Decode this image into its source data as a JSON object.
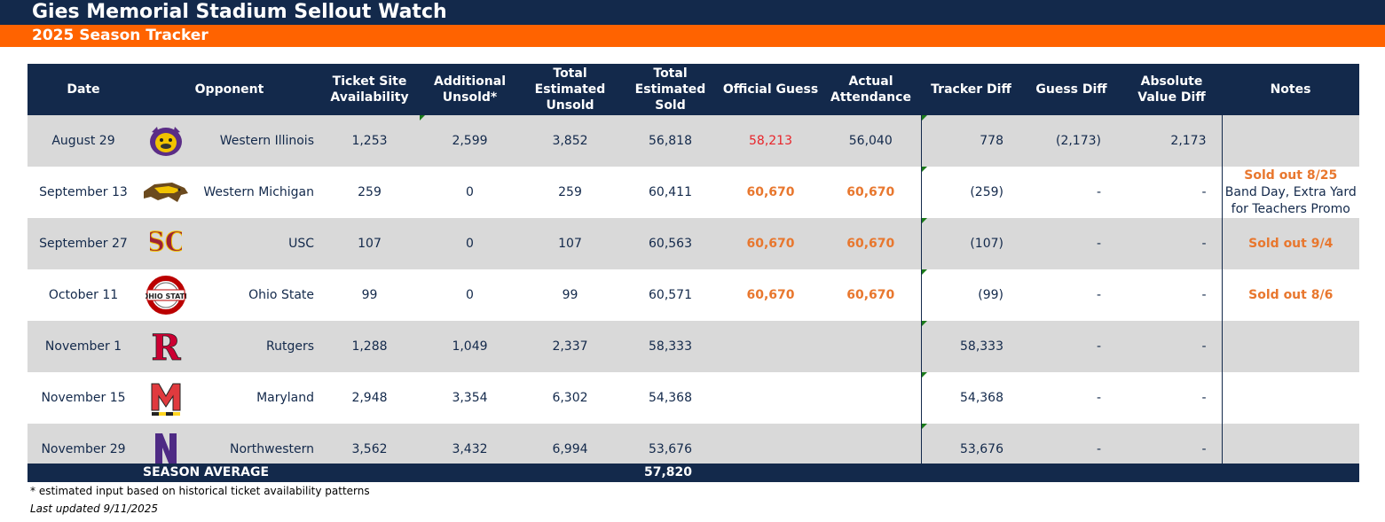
{
  "header": {
    "title": "Gies Memorial Stadium Sellout Watch",
    "subtitle": "2025 Season Tracker"
  },
  "colors": {
    "navy": "#13294b",
    "orange": "#ff6300",
    "row_gray": "#d9d9d9",
    "highlight_orange": "#e8772e",
    "highlight_red": "#e8242a"
  },
  "columns": {
    "date": "Date",
    "opponent": "Opponent",
    "ticket_site_1": "Ticket Site",
    "ticket_site_2": "Availability",
    "additional_1": "Additional",
    "additional_2": "Unsold*",
    "total_unsold_1": "Total",
    "total_unsold_2": "Estimated",
    "total_unsold_3": "Unsold",
    "total_sold_1": "Total",
    "total_sold_2": "Estimated",
    "total_sold_3": "Sold",
    "official_guess": "Official Guess",
    "actual_1": "Actual",
    "actual_2": "Attendance",
    "tracker_diff": "Tracker Diff",
    "guess_diff": "Guess Diff",
    "abs_diff_1": "Absolute",
    "abs_diff_2": "Value Diff",
    "notes": "Notes"
  },
  "rows": [
    {
      "date": "August 29",
      "logo": "western-illinois-logo",
      "opponent": "Western Illinois",
      "ticket_site": "1,253",
      "additional": "2,599",
      "total_unsold": "3,852",
      "total_sold": "56,818",
      "official_guess": "58,213",
      "actual": "56,040",
      "tracker_diff": "778",
      "guess_diff": "(2,173)",
      "abs_diff": "2,173",
      "note_1": "",
      "note_2": ""
    },
    {
      "date": "September 13",
      "logo": "western-michigan-logo",
      "opponent": "Western Michigan",
      "ticket_site": "259",
      "additional": "0",
      "total_unsold": "259",
      "total_sold": "60,411",
      "official_guess": "60,670",
      "actual": "60,670",
      "tracker_diff": "(259)",
      "guess_diff": "-",
      "abs_diff": "-",
      "note_1": "Sold out 8/25",
      "note_2": "Band Day, Extra Yard for Teachers Promo"
    },
    {
      "date": "September 27",
      "logo": "usc-logo",
      "opponent": "USC",
      "ticket_site": "107",
      "additional": "0",
      "total_unsold": "107",
      "total_sold": "60,563",
      "official_guess": "60,670",
      "actual": "60,670",
      "tracker_diff": "(107)",
      "guess_diff": "-",
      "abs_diff": "-",
      "note_1": "Sold out 9/4",
      "note_2": ""
    },
    {
      "date": "October 11",
      "logo": "ohio-state-logo",
      "opponent": "Ohio State",
      "ticket_site": "99",
      "additional": "0",
      "total_unsold": "99",
      "total_sold": "60,571",
      "official_guess": "60,670",
      "actual": "60,670",
      "tracker_diff": "(99)",
      "guess_diff": "-",
      "abs_diff": "-",
      "note_1": "Sold out 8/6",
      "note_2": ""
    },
    {
      "date": "November 1",
      "logo": "rutgers-logo",
      "opponent": "Rutgers",
      "ticket_site": "1,288",
      "additional": "1,049",
      "total_unsold": "2,337",
      "total_sold": "58,333",
      "official_guess": "",
      "actual": "",
      "tracker_diff": "58,333",
      "guess_diff": "-",
      "abs_diff": "-",
      "note_1": "",
      "note_2": ""
    },
    {
      "date": "November 15",
      "logo": "maryland-logo",
      "opponent": "Maryland",
      "ticket_site": "2,948",
      "additional": "3,354",
      "total_unsold": "6,302",
      "total_sold": "54,368",
      "official_guess": "",
      "actual": "",
      "tracker_diff": "54,368",
      "guess_diff": "-",
      "abs_diff": "-",
      "note_1": "",
      "note_2": ""
    },
    {
      "date": "November 29",
      "logo": "northwestern-logo",
      "opponent": "Northwestern",
      "ticket_site": "3,562",
      "additional": "3,432",
      "total_unsold": "6,994",
      "total_sold": "53,676",
      "official_guess": "",
      "actual": "",
      "tracker_diff": "53,676",
      "guess_diff": "-",
      "abs_diff": "-",
      "note_1": "",
      "note_2": ""
    }
  ],
  "season_average": {
    "label": "SEASON AVERAGE",
    "value": "57,820"
  },
  "footer": {
    "footnote": "* estimated input based on historical ticket availability patterns",
    "updated": "Last updated 9/11/2025"
  }
}
